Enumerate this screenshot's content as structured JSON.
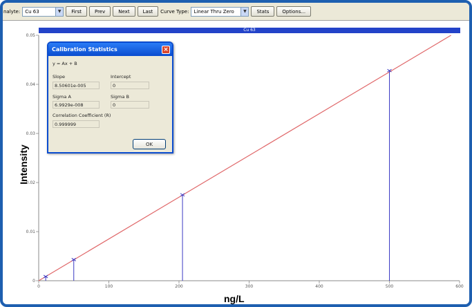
{
  "toolbar": {
    "analyte_label": "nalyte:",
    "analyte_value": "Cu 63",
    "first_label": "First",
    "prev_label": "Prev",
    "next_label": "Next",
    "last_label": "Last",
    "curve_type_label": "Curve Type:",
    "curve_type_value": "Linear Thru Zero",
    "stats_label": "Stats",
    "options_label": "Options..."
  },
  "chart": {
    "title": "Cu 63",
    "xlabel": "ng/L",
    "ylabel": "Intensity",
    "line_color": "#e0686a",
    "point_color": "#3a39c4",
    "title_bar_color": "#2343c9"
  },
  "chart_data": {
    "type": "scatter",
    "title": "Cu 63",
    "xlabel": "ng/L",
    "ylabel": "Intensity",
    "xlim": [
      0,
      600
    ],
    "ylim": [
      0,
      0.05
    ],
    "x_ticks": [
      "0",
      "100",
      "200",
      "300",
      "400",
      "500",
      "600"
    ],
    "y_ticks": [
      "0",
      "0.01",
      "0.02",
      "0.03",
      "0.04",
      "0.05"
    ],
    "points": [
      {
        "x": 10,
        "y": 0.00085
      },
      {
        "x": 50,
        "y": 0.0043
      },
      {
        "x": 205,
        "y": 0.0175
      },
      {
        "x": 500,
        "y": 0.0428
      }
    ],
    "fit_line": {
      "slope": 8.50601e-05,
      "intercept": 0
    },
    "grid": false
  },
  "dialog": {
    "title": "Calibration Statistics",
    "equation": "y = Ax + B",
    "slope_label": "Slope",
    "slope_value": "8.50601e-005",
    "intercept_label": "Intercept",
    "intercept_value": "0",
    "sigma_a_label": "Sigma A",
    "sigma_a_value": "6.9929e-008",
    "sigma_b_label": "Sigma B",
    "sigma_b_value": "0",
    "correlation_label": "Correlation Coefficient (R)",
    "correlation_value": "0.999999",
    "ok_label": "OK"
  }
}
